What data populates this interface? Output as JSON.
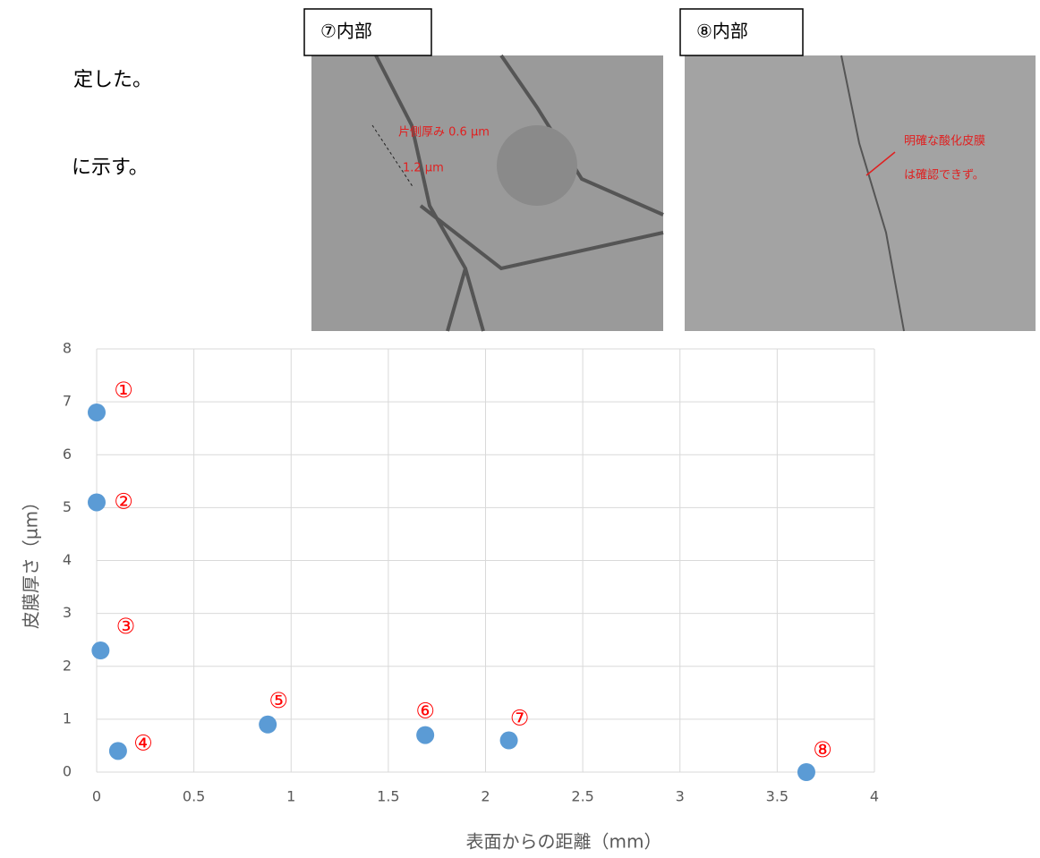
{
  "header": {
    "line1": "定した。",
    "line2": "に示す。"
  },
  "images": [
    {
      "label": "⑦内部",
      "notes": [
        "片側厚み 0.6 µm",
        "1.2 µm"
      ]
    },
    {
      "label": "⑧内部",
      "notes": [
        "明確な酸化皮膜",
        "は確認できず。"
      ]
    }
  ],
  "chart_data": {
    "type": "scatter",
    "x_label": "表面からの距離（mm）",
    "y_label": "皮膜厚さ（µm）",
    "x": [
      0,
      0,
      0.02,
      0.11,
      0.88,
      1.69,
      2.12,
      3.65
    ],
    "values": [
      6.8,
      5.1,
      2.3,
      0.4,
      0.9,
      0.7,
      0.6,
      0
    ],
    "point_labels": [
      "①",
      "②",
      "③",
      "④",
      "⑤",
      "⑥",
      "⑦",
      "⑧"
    ],
    "color": "#5b9bd5",
    "label_color": "#ff0000",
    "xlim": [
      0,
      4
    ],
    "xticks": [
      0,
      0.5,
      1,
      1.5,
      2,
      2.5,
      3,
      3.5,
      4
    ],
    "ylim": [
      0,
      8
    ],
    "yticks": [
      0,
      1,
      2,
      3,
      4,
      5,
      6,
      7,
      8
    ],
    "grid": true
  }
}
